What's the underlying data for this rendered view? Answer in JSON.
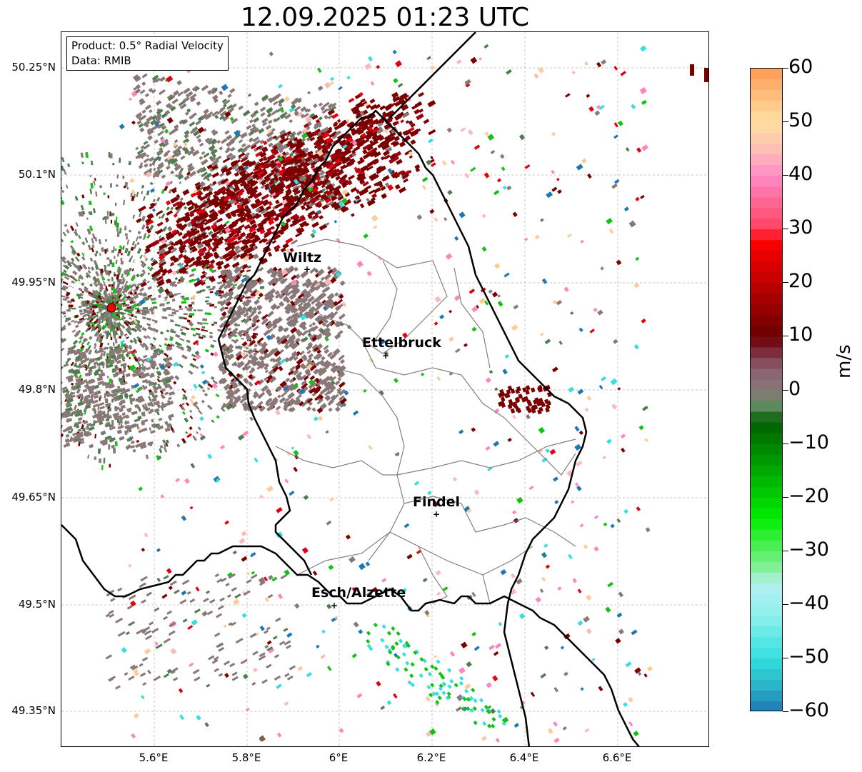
{
  "title": "12.09.2025 01:23 UTC",
  "info": {
    "product": "Product: 0.5° Radial Velocity",
    "data_source": "Data: RMIB"
  },
  "lat_ticks": [
    "50.25°N",
    "50.1°N",
    "49.95°N",
    "49.8°N",
    "49.65°N",
    "49.5°N",
    "49.35°N"
  ],
  "lon_ticks": [
    "5.6°E",
    "5.8°E",
    "6°E",
    "6.2°E",
    "6.4°E",
    "6.6°E"
  ],
  "cities": [
    {
      "name": "Wiltz"
    },
    {
      "name": "Ettelbruck"
    },
    {
      "name": "Findel"
    },
    {
      "name": "Esch/Alzette"
    }
  ],
  "colorbar": {
    "unit": "m/s",
    "ticks": [
      "60",
      "50",
      "40",
      "30",
      "20",
      "10",
      "0",
      "−10",
      "−20",
      "−30",
      "−40",
      "−50",
      "−60"
    ],
    "min": -60,
    "max": 60
  },
  "colors": {
    "outbound_dark": "#7a0000",
    "outbound_red": "#e00010",
    "pink": "#ff88bb",
    "neutral": "#8a7878",
    "green_dark": "#4f7d4f",
    "green": "#13c213",
    "cyan": "#36dede",
    "blue": "#1f77b4",
    "radar_site": "#ff0000",
    "border": "#000000",
    "canton": "#808080",
    "grid": "#b4b4b4"
  },
  "colorbar_stops": [
    {
      "v": -60,
      "c": "#1f77b4"
    },
    {
      "v": -55,
      "c": "#2ab5c8"
    },
    {
      "v": -50,
      "c": "#33dfdf"
    },
    {
      "v": -42,
      "c": "#8ff0ee"
    },
    {
      "v": -36,
      "c": "#b5efef"
    },
    {
      "v": -34,
      "c": "#8ff0a8"
    },
    {
      "v": -30,
      "c": "#55f060"
    },
    {
      "v": -24,
      "c": "#00ee00"
    },
    {
      "v": -16,
      "c": "#00b000"
    },
    {
      "v": -6,
      "c": "#006000"
    },
    {
      "v": -3,
      "c": "#5d8a5d"
    },
    {
      "v": 0,
      "c": "#877878"
    },
    {
      "v": 4,
      "c": "#8a6070"
    },
    {
      "v": 8,
      "c": "#7a1a2a"
    },
    {
      "v": 10,
      "c": "#6a0000"
    },
    {
      "v": 20,
      "c": "#c00000"
    },
    {
      "v": 28,
      "c": "#ff0000"
    },
    {
      "v": 30,
      "c": "#ff4060"
    },
    {
      "v": 40,
      "c": "#ff8cc8"
    },
    {
      "v": 44,
      "c": "#ffb8b8"
    },
    {
      "v": 50,
      "c": "#ffe0a0"
    },
    {
      "v": 60,
      "c": "#ff9a55"
    }
  ]
}
